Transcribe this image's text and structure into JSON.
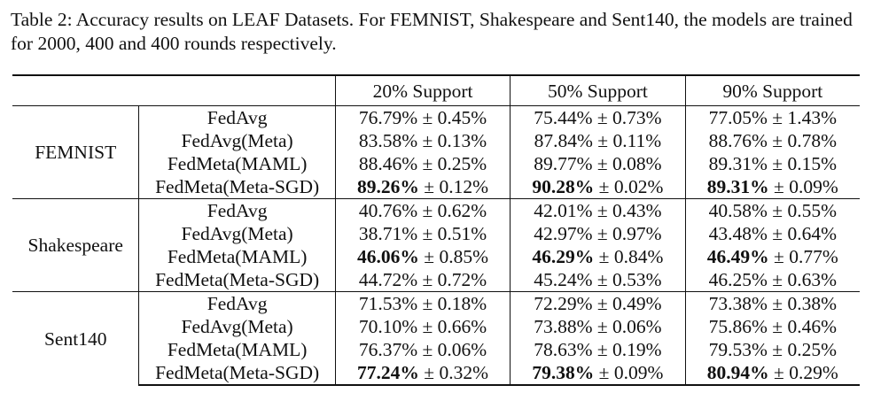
{
  "caption": "Table 2: Accuracy results on LEAF Datasets. For FEMNIST, Shakespeare and Sent140, the models are trained for 2000, 400 and 400 rounds respectively.",
  "columns": [
    "20% Support",
    "50% Support",
    "90% Support"
  ],
  "pm": "±",
  "datasets": [
    {
      "name": "FEMNIST",
      "rows": [
        {
          "method": "FedAvg",
          "cells": [
            {
              "mean": "76.79%",
              "std": "0.45%",
              "bold": false
            },
            {
              "mean": "75.44%",
              "std": "0.73%",
              "bold": false
            },
            {
              "mean": "77.05%",
              "std": "1.43%",
              "bold": false
            }
          ]
        },
        {
          "method": "FedAvg(Meta)",
          "cells": [
            {
              "mean": "83.58%",
              "std": "0.13%",
              "bold": false
            },
            {
              "mean": "87.84%",
              "std": "0.11%",
              "bold": false
            },
            {
              "mean": "88.76%",
              "std": "0.78%",
              "bold": false
            }
          ]
        },
        {
          "method": "FedMeta(MAML)",
          "cells": [
            {
              "mean": "88.46%",
              "std": "0.25%",
              "bold": false
            },
            {
              "mean": "89.77%",
              "std": "0.08%",
              "bold": false
            },
            {
              "mean": "89.31%",
              "std": "0.15%",
              "bold": false
            }
          ]
        },
        {
          "method": "FedMeta(Meta-SGD)",
          "cells": [
            {
              "mean": "89.26%",
              "std": "0.12%",
              "bold": true
            },
            {
              "mean": "90.28%",
              "std": "0.02%",
              "bold": true
            },
            {
              "mean": "89.31%",
              "std": "0.09%",
              "bold": true
            }
          ]
        }
      ]
    },
    {
      "name": "Shakespeare",
      "rows": [
        {
          "method": "FedAvg",
          "cells": [
            {
              "mean": "40.76%",
              "std": "0.62%",
              "bold": false
            },
            {
              "mean": "42.01%",
              "std": "0.43%",
              "bold": false
            },
            {
              "mean": "40.58%",
              "std": "0.55%",
              "bold": false
            }
          ]
        },
        {
          "method": "FedAvg(Meta)",
          "cells": [
            {
              "mean": "38.71%",
              "std": "0.51%",
              "bold": false
            },
            {
              "mean": "42.97%",
              "std": "0.97%",
              "bold": false
            },
            {
              "mean": "43.48%",
              "std": "0.64%",
              "bold": false
            }
          ]
        },
        {
          "method": "FedMeta(MAML)",
          "cells": [
            {
              "mean": "46.06%",
              "std": "0.85%",
              "bold": true
            },
            {
              "mean": "46.29%",
              "std": "0.84%",
              "bold": true
            },
            {
              "mean": "46.49%",
              "std": "0.77%",
              "bold": true
            }
          ]
        },
        {
          "method": "FedMeta(Meta-SGD)",
          "cells": [
            {
              "mean": "44.72%",
              "std": "0.72%",
              "bold": false
            },
            {
              "mean": "45.24%",
              "std": "0.53%",
              "bold": false
            },
            {
              "mean": "46.25%",
              "std": "0.63%",
              "bold": false
            }
          ]
        }
      ]
    },
    {
      "name": "Sent140",
      "rows": [
        {
          "method": "FedAvg",
          "cells": [
            {
              "mean": "71.53%",
              "std": "0.18%",
              "bold": false
            },
            {
              "mean": "72.29%",
              "std": "0.49%",
              "bold": false
            },
            {
              "mean": "73.38%",
              "std": "0.38%",
              "bold": false
            }
          ]
        },
        {
          "method": "FedAvg(Meta)",
          "cells": [
            {
              "mean": "70.10%",
              "std": "0.66%",
              "bold": false
            },
            {
              "mean": "73.88%",
              "std": "0.06%",
              "bold": false
            },
            {
              "mean": "75.86%",
              "std": "0.46%",
              "bold": false
            }
          ]
        },
        {
          "method": "FedMeta(MAML)",
          "cells": [
            {
              "mean": "76.37%",
              "std": "0.06%",
              "bold": false
            },
            {
              "mean": "78.63%",
              "std": "0.19%",
              "bold": false
            },
            {
              "mean": "79.53%",
              "std": "0.25%",
              "bold": false
            }
          ]
        },
        {
          "method": "FedMeta(Meta-SGD)",
          "cells": [
            {
              "mean": "77.24%",
              "std": "0.32%",
              "bold": true
            },
            {
              "mean": "79.38%",
              "std": "0.09%",
              "bold": true
            },
            {
              "mean": "80.94%",
              "std": "0.29%",
              "bold": true
            }
          ]
        }
      ]
    }
  ]
}
